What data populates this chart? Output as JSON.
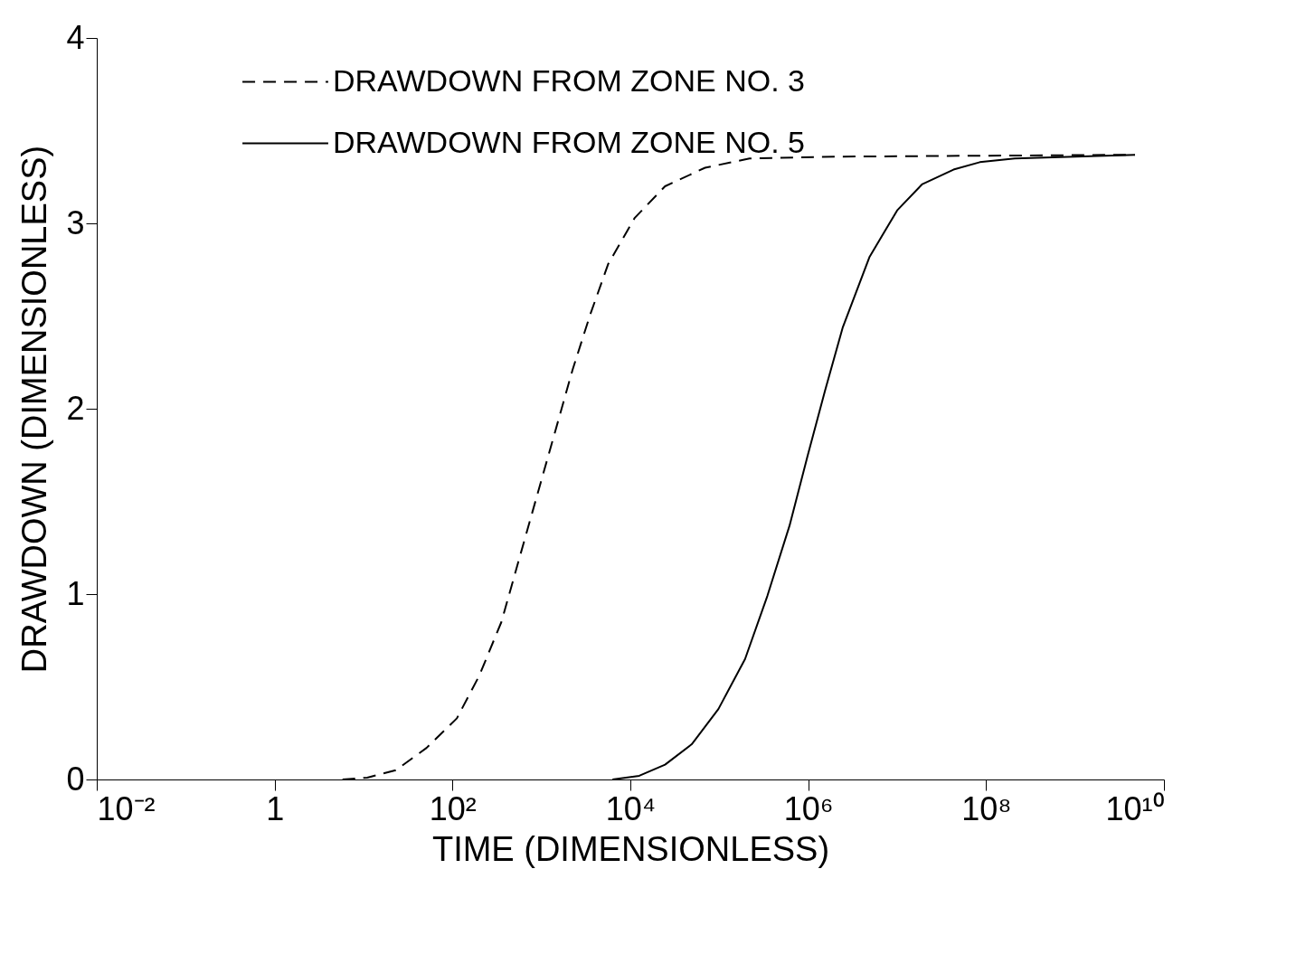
{
  "chart_data": {
    "type": "line",
    "xlabel": "TIME  (DIMENSIONLESS)",
    "ylabel": "DRAWDOWN  (DIMENSIONLESS)",
    "log": "x",
    "xlim": [
      0.01,
      10000000000
    ],
    "xticks": [
      {
        "value": 0.01,
        "label": "10⁻²"
      },
      1,
      {
        "value": 100,
        "label": "10²"
      },
      {
        "value": 10000,
        "label": "10⁴"
      },
      {
        "value": 1000000,
        "label": "10⁶"
      },
      {
        "value": 100000000,
        "label": "10⁸"
      },
      {
        "value": 10000000000,
        "label": "10¹⁰"
      }
    ],
    "ylim": [
      0,
      4
    ],
    "yticks": [
      0,
      1,
      2,
      3,
      4
    ],
    "grid": false,
    "legend": "top",
    "marker": "none",
    "series": [
      {
        "name": "DRAWDOWN FROM ZONE NO. 3",
        "color": "#000000",
        "line_style": "dashed",
        "x": [
          5.8,
          11,
          23,
          51,
          112,
          200,
          355,
          562,
          891,
          1413,
          2239,
          3548,
          5623,
          11220,
          24550,
          69180,
          218800,
          2190000,
          4700000000
        ],
        "values": [
          0,
          0.01,
          0.05,
          0.17,
          0.33,
          0.56,
          0.85,
          1.19,
          1.53,
          1.87,
          2.21,
          2.51,
          2.78,
          3.03,
          3.2,
          3.3,
          3.35,
          3.36,
          3.37
        ]
      },
      {
        "name": "DRAWDOWN FROM ZONE NO. 5",
        "color": "#000000",
        "line_style": "solid",
        "x": [
          6300,
          12590,
          24550,
          48980,
          97700,
          195000,
          347000,
          617000,
          977000,
          1550000,
          2450000,
          4900000,
          10000000,
          19000000,
          43000000,
          85000000,
          210000000,
          4700000000
        ],
        "values": [
          0,
          0.02,
          0.08,
          0.19,
          0.38,
          0.65,
          0.99,
          1.37,
          1.74,
          2.1,
          2.44,
          2.82,
          3.07,
          3.21,
          3.29,
          3.33,
          3.35,
          3.37
        ]
      }
    ]
  }
}
